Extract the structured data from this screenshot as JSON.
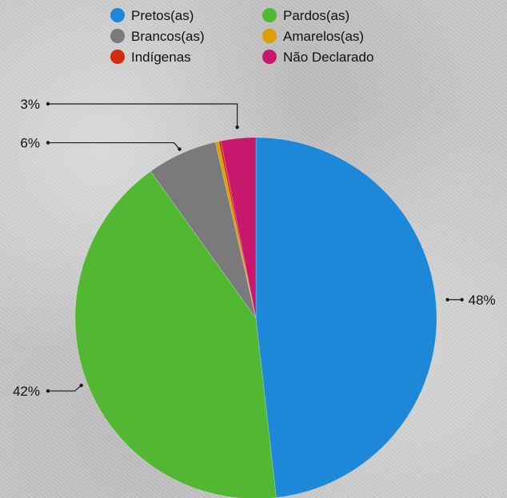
{
  "chart_data": {
    "type": "pie",
    "title": "",
    "legend_position": "top",
    "categories": [
      "Pretos(as)",
      "Pardos(as)",
      "Brancos(as)",
      "Amarelos(as)",
      "Indígenas",
      "Não Declarado"
    ],
    "values": [
      48.2,
      41.9,
      6.3,
      0.3,
      0.2,
      3.1
    ],
    "colors": [
      "#1e88d8",
      "#52b833",
      "#7a7a7a",
      "#d9a000",
      "#d42c10",
      "#c8186e"
    ],
    "data_labels": [
      "48%",
      "42%",
      "6%",
      "",
      "",
      "3%"
    ],
    "legend": [
      {
        "label": "Pretos(as)",
        "color": "#1e88d8"
      },
      {
        "label": "Pardos(as)",
        "color": "#52b833"
      },
      {
        "label": "Brancos(as)",
        "color": "#7a7a7a"
      },
      {
        "label": "Amarelos(as)",
        "color": "#d9a000"
      },
      {
        "label": "Indígenas",
        "color": "#d42c10"
      },
      {
        "label": "Não Declarado",
        "color": "#c8186e"
      }
    ]
  }
}
